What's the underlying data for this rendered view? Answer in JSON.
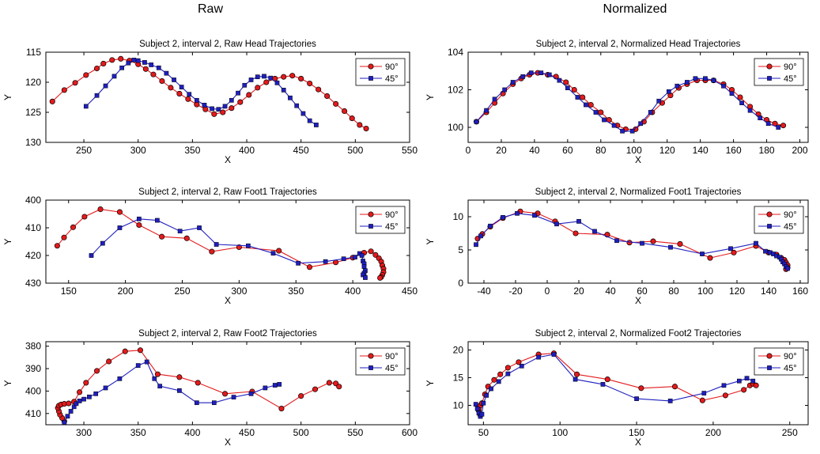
{
  "columns": [
    "Raw",
    "Normalized"
  ],
  "chart_data": [
    {
      "type": "line",
      "title": "Subject 2, interval 2, Raw Head Trajectories",
      "xlabel": "X",
      "ylabel": "Y",
      "xlim": [
        215,
        550
      ],
      "ylim": [
        130,
        115
      ],
      "y_reversed": true,
      "xticks": [
        250,
        300,
        350,
        400,
        450,
        500,
        550
      ],
      "yticks": [
        115,
        120,
        125,
        130
      ],
      "legend_position": "top-right",
      "series": [
        {
          "name": "90°",
          "color": "#e41a1c",
          "marker": "circle",
          "x": [
            221,
            232,
            242,
            252,
            262,
            268,
            276,
            284,
            292,
            300,
            307,
            314,
            322,
            330,
            338,
            346,
            354,
            362,
            370,
            378,
            386,
            394,
            402,
            410,
            418,
            426,
            434,
            442,
            450,
            458,
            466,
            474,
            482,
            490,
            497,
            504,
            510
          ],
          "y": [
            123.2,
            121.3,
            120.1,
            118.8,
            117.7,
            116.9,
            116.3,
            116.1,
            116.4,
            117.0,
            117.8,
            118.7,
            119.8,
            120.9,
            121.9,
            122.8,
            123.7,
            124.5,
            125.3,
            125.0,
            124.3,
            123.3,
            122.1,
            120.9,
            120.0,
            119.4,
            119.1,
            118.9,
            119.4,
            120.2,
            121.2,
            122.3,
            123.6,
            124.8,
            126.0,
            127.1,
            127.7
          ]
        },
        {
          "name": "45°",
          "color": "#1f1fbf",
          "marker": "square",
          "x": [
            252,
            262,
            270,
            278,
            285,
            291,
            296,
            300,
            306,
            312,
            319,
            326,
            333,
            340,
            347,
            354,
            361,
            368,
            374,
            380,
            386,
            392,
            398,
            404,
            410,
            416,
            422,
            428,
            434,
            440,
            446,
            452,
            458,
            464
          ],
          "y": [
            124.0,
            122.2,
            120.6,
            119.0,
            117.6,
            116.8,
            116.3,
            116.4,
            116.7,
            117.1,
            117.6,
            118.5,
            119.6,
            120.8,
            122.0,
            123.0,
            123.8,
            124.4,
            124.5,
            124.0,
            123.0,
            121.8,
            120.5,
            119.6,
            119.1,
            119.0,
            119.3,
            120.1,
            121.3,
            122.6,
            123.9,
            125.2,
            126.4,
            127.1
          ]
        }
      ]
    },
    {
      "type": "line",
      "title": "Subject 2, interval 2, Normalized Head Trajectories",
      "xlabel": "X",
      "ylabel": "Y",
      "xlim": [
        0,
        205
      ],
      "ylim": [
        99.2,
        104
      ],
      "xticks": [
        0,
        20,
        40,
        60,
        80,
        100,
        120,
        140,
        160,
        180,
        200
      ],
      "yticks": [
        100,
        102,
        104
      ],
      "legend_position": "top-right",
      "series": [
        {
          "name": "90°",
          "color": "#e41a1c",
          "marker": "circle",
          "x": [
            5,
            11,
            16,
            21,
            27,
            32,
            37,
            42,
            48,
            53,
            59,
            64,
            69,
            74,
            80,
            85,
            90,
            95,
            101,
            106,
            111,
            117,
            122,
            127,
            132,
            138,
            143,
            148,
            154,
            159,
            164,
            170,
            175,
            180,
            185,
            190
          ],
          "y": [
            100.3,
            100.8,
            101.3,
            101.8,
            102.3,
            102.6,
            102.8,
            102.9,
            102.8,
            102.7,
            102.4,
            102.0,
            101.6,
            101.2,
            100.8,
            100.4,
            100.1,
            99.9,
            99.9,
            100.3,
            100.8,
            101.3,
            101.7,
            102.1,
            102.3,
            102.5,
            102.5,
            102.5,
            102.3,
            102.0,
            101.6,
            101.1,
            100.7,
            100.4,
            100.2,
            100.1
          ]
        },
        {
          "name": "45°",
          "color": "#1f1fbf",
          "marker": "square",
          "x": [
            5,
            11,
            16,
            22,
            27,
            33,
            38,
            44,
            49,
            55,
            60,
            66,
            71,
            77,
            82,
            88,
            93,
            99,
            104,
            110,
            115,
            121,
            126,
            132,
            137,
            143,
            148,
            154,
            159,
            165,
            170,
            176,
            181,
            187
          ],
          "y": [
            100.3,
            100.9,
            101.5,
            102.0,
            102.4,
            102.7,
            102.9,
            102.9,
            102.8,
            102.5,
            102.1,
            101.6,
            101.2,
            100.8,
            100.4,
            100.1,
            99.8,
            99.8,
            100.2,
            100.8,
            101.4,
            101.9,
            102.2,
            102.4,
            102.6,
            102.6,
            102.5,
            102.2,
            101.8,
            101.3,
            100.9,
            100.5,
            100.2,
            100.0
          ]
        }
      ]
    },
    {
      "type": "line",
      "title": "Subject 2, interval 2, Raw Foot1 Trajectories",
      "xlabel": "X",
      "ylabel": "Y",
      "xlim": [
        130,
        450
      ],
      "ylim": [
        430,
        400
      ],
      "y_reversed": true,
      "xticks": [
        150,
        200,
        250,
        300,
        350,
        400,
        450
      ],
      "yticks": [
        400,
        410,
        420,
        430
      ],
      "legend_position": "top-right",
      "series": [
        {
          "name": "90°",
          "color": "#e41a1c",
          "marker": "circle",
          "x": [
            140,
            146,
            154,
            164,
            178,
            195,
            212,
            232,
            254,
            276,
            300,
            335,
            362,
            385,
            400,
            410,
            416,
            420,
            423,
            425,
            426,
            427,
            427,
            426,
            425,
            424
          ],
          "y": [
            416.5,
            413.5,
            409.8,
            406.0,
            403.3,
            404.3,
            409.0,
            413.2,
            413.8,
            418.6,
            417.0,
            418.3,
            424.2,
            422.5,
            420.8,
            419.0,
            418.5,
            419.8,
            421.0,
            422.2,
            423.6,
            424.8,
            426.0,
            427.0,
            427.8,
            428.1
          ]
        },
        {
          "name": "45°",
          "color": "#1f1fbf",
          "marker": "square",
          "x": [
            170,
            180,
            195,
            212,
            228,
            248,
            265,
            280,
            308,
            330,
            352,
            376,
            392,
            402,
            406,
            408,
            409,
            410,
            410,
            411,
            410,
            409,
            411
          ],
          "y": [
            420.0,
            415.6,
            410.0,
            406.8,
            407.3,
            411.2,
            410.0,
            416.0,
            416.5,
            419.2,
            422.8,
            422.2,
            421.2,
            420.6,
            419.3,
            420.0,
            422.0,
            423.0,
            424.0,
            425.5,
            426.4,
            427.0,
            428.0
          ]
        }
      ]
    },
    {
      "type": "line",
      "title": "Subject 2, interval 2, Normalized Foot1 Trajectories",
      "xlabel": "X",
      "ylabel": "Y",
      "xlim": [
        -50,
        165
      ],
      "ylim": [
        0,
        12.5
      ],
      "xticks": [
        -40,
        -20,
        0,
        20,
        40,
        60,
        80,
        100,
        120,
        140,
        160
      ],
      "yticks": [
        0,
        5,
        10
      ],
      "legend_position": "top-right",
      "series": [
        {
          "name": "90°",
          "color": "#e41a1c",
          "marker": "circle",
          "x": [
            -44,
            -41,
            -36,
            -28,
            -17,
            -6,
            5,
            18,
            38,
            52,
            67,
            84,
            103,
            118,
            132,
            140,
            145,
            148,
            150,
            151,
            152,
            152,
            151
          ],
          "y": [
            6.7,
            7.4,
            8.5,
            9.8,
            10.8,
            10.5,
            9.3,
            7.5,
            7.3,
            6.1,
            6.3,
            5.9,
            3.8,
            4.6,
            5.6,
            4.6,
            4.3,
            3.8,
            3.5,
            3.1,
            2.7,
            2.3,
            2.1
          ]
        },
        {
          "name": "45°",
          "color": "#1f1fbf",
          "marker": "square",
          "x": [
            -45,
            -42,
            -36,
            -28,
            -19,
            -8,
            6,
            20,
            30,
            44,
            60,
            78,
            98,
            116,
            132,
            138,
            141,
            143,
            145,
            147,
            148,
            149,
            150,
            151,
            152
          ],
          "y": [
            5.8,
            7.1,
            8.6,
            9.9,
            10.5,
            10.2,
            8.9,
            9.3,
            7.8,
            6.4,
            6.0,
            5.4,
            4.4,
            5.2,
            6.0,
            4.8,
            4.6,
            4.4,
            4.1,
            3.9,
            3.6,
            3.2,
            2.9,
            2.5,
            2.2
          ]
        }
      ]
    },
    {
      "type": "line",
      "title": "Subject 2, interval 2, Raw Foot2 Trajectories",
      "xlabel": "X",
      "ylabel": "Y",
      "xlim": [
        265,
        600
      ],
      "ylim": [
        415,
        378
      ],
      "y_reversed": true,
      "xticks": [
        300,
        350,
        400,
        450,
        500,
        550,
        600
      ],
      "yticks": [
        380,
        390,
        400,
        410
      ],
      "legend_position": "top-right",
      "series": [
        {
          "name": "90°",
          "color": "#e41a1c",
          "marker": "circle",
          "x": [
            282,
            280,
            278,
            277,
            276,
            277,
            279,
            282,
            286,
            291,
            296,
            302,
            312,
            323,
            338,
            352,
            368,
            388,
            405,
            430,
            455,
            482,
            500,
            513,
            526,
            532,
            535
          ],
          "y": [
            413.5,
            412.0,
            410.5,
            409.0,
            407.5,
            406.5,
            406.0,
            405.7,
            405.5,
            404.7,
            400.5,
            396.3,
            391.0,
            386.8,
            382.3,
            381.8,
            392.5,
            393.8,
            396.3,
            401.2,
            400.2,
            407.8,
            402.2,
            399.2,
            396.3,
            396.6,
            398.0
          ]
        },
        {
          "name": "45°",
          "color": "#1f1fbf",
          "marker": "square",
          "x": [
            282,
            285,
            288,
            291,
            293,
            296,
            300,
            305,
            311,
            320,
            333,
            350,
            358,
            365,
            370,
            388,
            404,
            420,
            438,
            454,
            467,
            476,
            480
          ],
          "y": [
            414.0,
            411.2,
            409.0,
            407.0,
            405.6,
            404.4,
            403.6,
            402.6,
            401.2,
            398.6,
            394.5,
            388.6,
            387.0,
            394.5,
            397.8,
            399.8,
            405.2,
            405.2,
            402.7,
            401.2,
            398.6,
            397.4,
            397.0
          ]
        }
      ]
    },
    {
      "type": "line",
      "title": "Subject 2, interval 2, Normalized Foot2 Trajectories",
      "xlabel": "X",
      "ylabel": "Y",
      "xlim": [
        40,
        262
      ],
      "ylim": [
        6.5,
        21.5
      ],
      "xticks": [
        50,
        100,
        150,
        200,
        250
      ],
      "yticks": [
        10,
        15,
        20
      ],
      "legend_position": "top-right",
      "series": [
        {
          "name": "90°",
          "color": "#e41a1c",
          "marker": "circle",
          "x": [
            48,
            47,
            47,
            48,
            49,
            51,
            53,
            57,
            61,
            66,
            73,
            86,
            96,
            111,
            131,
            153,
            175,
            193,
            208,
            220,
            224,
            226,
            228
          ],
          "y": [
            8.2,
            9.0,
            9.5,
            10.0,
            10.4,
            12.0,
            13.4,
            14.6,
            15.6,
            16.8,
            17.8,
            19.2,
            19.4,
            15.6,
            14.7,
            13.1,
            13.4,
            10.9,
            11.8,
            12.8,
            13.6,
            13.9,
            13.6
          ]
        },
        {
          "name": "45°",
          "color": "#1f1fbf",
          "marker": "square",
          "x": [
            45,
            46,
            47,
            48,
            49,
            50,
            52,
            55,
            60,
            66,
            75,
            86,
            96,
            110,
            128,
            150,
            172,
            194,
            207,
            217,
            222,
            226
          ],
          "y": [
            10.2,
            9.4,
            8.6,
            8.0,
            8.4,
            10.4,
            11.8,
            13.0,
            14.3,
            15.7,
            17.1,
            18.7,
            19.2,
            14.7,
            13.8,
            11.2,
            10.8,
            12.2,
            13.6,
            14.4,
            14.9,
            14.4
          ]
        }
      ]
    }
  ]
}
